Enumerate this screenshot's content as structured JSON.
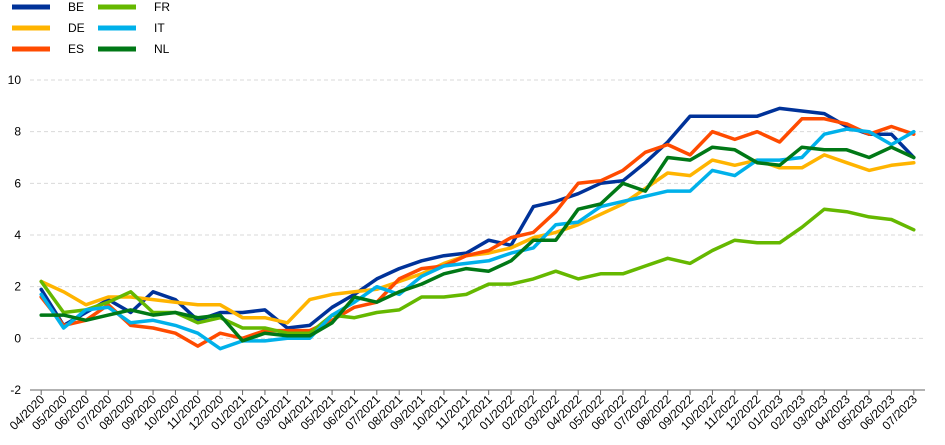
{
  "chart_data": {
    "type": "line",
    "title": "",
    "xlabel": "",
    "ylabel": "",
    "ylim": [
      -2,
      10
    ],
    "yticks": [
      -2,
      0,
      2,
      4,
      6,
      8,
      10
    ],
    "grid": "horizontal",
    "legend_position": "top-left",
    "categories": [
      "04/2020",
      "05/2020",
      "06/2020",
      "07/2020",
      "08/2020",
      "09/2020",
      "10/2020",
      "11/2020",
      "12/2020",
      "01/2021",
      "02/2021",
      "03/2021",
      "04/2021",
      "05/2021",
      "06/2021",
      "07/2021",
      "08/2021",
      "09/2021",
      "10/2021",
      "11/2021",
      "12/2021",
      "01/2022",
      "02/2022",
      "03/2022",
      "04/2022",
      "05/2022",
      "06/2022",
      "07/2022",
      "08/2022",
      "09/2022",
      "10/2022",
      "11/2022",
      "12/2022",
      "01/2023",
      "02/2023",
      "03/2023",
      "04/2023",
      "05/2023",
      "06/2023",
      "07/2023"
    ],
    "series": [
      {
        "name": "BE",
        "color": "#003299",
        "values": [
          1.9,
          0.5,
          1.0,
          1.5,
          1.0,
          1.8,
          1.5,
          0.7,
          1.0,
          1.0,
          1.1,
          0.4,
          0.5,
          1.2,
          1.7,
          2.3,
          2.7,
          3.0,
          3.2,
          3.3,
          3.8,
          3.6,
          5.1,
          5.3,
          5.6,
          6.0,
          6.1,
          6.8,
          7.6,
          8.6,
          8.6,
          8.6,
          8.6,
          8.9,
          8.8,
          8.7,
          8.2,
          7.9,
          7.9,
          7.0
        ]
      },
      {
        "name": "DE",
        "color": "#FFB400",
        "values": [
          2.2,
          1.8,
          1.3,
          1.6,
          1.6,
          1.5,
          1.4,
          1.3,
          1.3,
          0.8,
          0.8,
          0.6,
          1.5,
          1.7,
          1.8,
          1.9,
          2.2,
          2.5,
          2.9,
          3.2,
          3.3,
          3.5,
          3.9,
          4.1,
          4.4,
          4.8,
          5.2,
          5.8,
          6.4,
          6.3,
          6.9,
          6.7,
          6.9,
          6.6,
          6.6,
          7.1,
          6.8,
          6.5,
          6.7,
          6.8
        ]
      },
      {
        "name": "ES",
        "color": "#FF4B00",
        "values": [
          1.6,
          0.5,
          0.7,
          1.3,
          0.5,
          0.4,
          0.2,
          -0.3,
          0.2,
          0.0,
          0.3,
          0.3,
          0.3,
          0.7,
          1.2,
          1.4,
          2.3,
          2.7,
          2.8,
          3.2,
          3.4,
          3.9,
          4.1,
          4.9,
          6.0,
          6.1,
          6.5,
          7.2,
          7.5,
          7.1,
          8.0,
          7.7,
          8.0,
          7.6,
          8.5,
          8.5,
          8.3,
          7.9,
          8.2,
          7.9
        ]
      },
      {
        "name": "FR",
        "color": "#65B800",
        "values": [
          2.2,
          1.0,
          1.1,
          1.4,
          1.8,
          1.0,
          1.0,
          0.6,
          0.8,
          0.4,
          0.4,
          0.2,
          0.2,
          0.9,
          0.8,
          1.0,
          1.1,
          1.6,
          1.6,
          1.7,
          2.1,
          2.1,
          2.3,
          2.6,
          2.3,
          2.5,
          2.5,
          2.8,
          3.1,
          2.9,
          3.4,
          3.8,
          3.7,
          3.7,
          4.3,
          5.0,
          4.9,
          4.7,
          4.6,
          4.2
        ]
      },
      {
        "name": "IT",
        "color": "#00B1EA",
        "values": [
          1.7,
          0.4,
          1.1,
          1.2,
          0.6,
          0.7,
          0.5,
          0.2,
          -0.4,
          -0.1,
          -0.1,
          0.0,
          0.0,
          0.9,
          1.4,
          2.0,
          1.7,
          2.4,
          2.8,
          2.9,
          3.0,
          3.3,
          3.5,
          4.4,
          4.5,
          5.1,
          5.3,
          5.5,
          5.7,
          5.7,
          6.5,
          6.3,
          6.9,
          6.9,
          7.0,
          7.9,
          8.1,
          8.0,
          7.5,
          8.0
        ]
      },
      {
        "name": "NL",
        "color": "#007816",
        "values": [
          0.9,
          0.9,
          0.7,
          0.9,
          1.1,
          0.9,
          1.0,
          0.8,
          0.9,
          -0.1,
          0.2,
          0.1,
          0.1,
          0.6,
          1.6,
          1.4,
          1.8,
          2.1,
          2.5,
          2.7,
          2.6,
          3.0,
          3.8,
          3.8,
          5.0,
          5.2,
          6.0,
          5.7,
          7.0,
          6.9,
          7.4,
          7.3,
          6.8,
          6.7,
          7.4,
          7.3,
          7.3,
          7.0,
          7.4,
          7.0
        ]
      }
    ]
  }
}
